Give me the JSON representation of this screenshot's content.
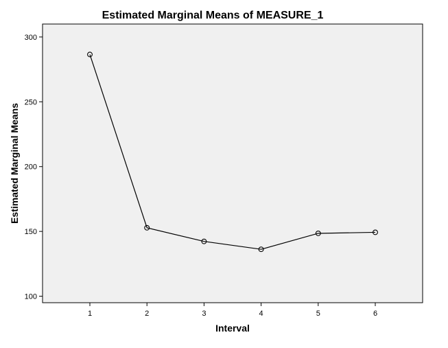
{
  "chart_data": {
    "type": "line",
    "title": "Estimated Marginal Means of MEASURE_1",
    "xlabel": "Interval",
    "ylabel": "Estimated Marginal Means",
    "categories": [
      "1",
      "2",
      "3",
      "4",
      "5",
      "6"
    ],
    "values": [
      286.5,
      152.8,
      142.3,
      136.2,
      148.5,
      149.3
    ],
    "ylim": [
      95,
      310
    ],
    "yticks": [
      100,
      150,
      200,
      250,
      300
    ],
    "ytick_labels": [
      "100",
      "150",
      "200",
      "250",
      "300"
    ],
    "grid": false,
    "marker": "open-circle",
    "colors": {
      "plot_background": "#f0f0f0",
      "line": "#000000",
      "frame": "#000000"
    }
  }
}
